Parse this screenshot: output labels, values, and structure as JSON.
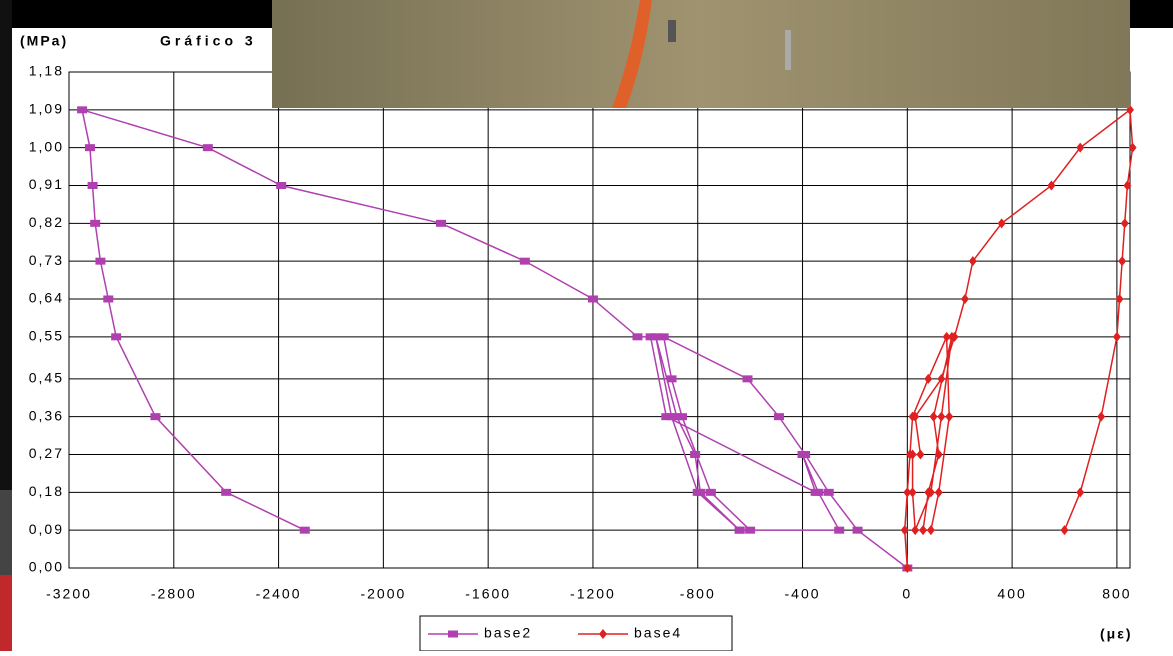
{
  "chart_data": {
    "type": "line",
    "title": "Gráfico 3",
    "y_label": "(MPa)",
    "x_label": "(με)",
    "xlim": [
      -3200,
      850
    ],
    "xticks": [
      -3200,
      -2800,
      -2400,
      -2000,
      -1600,
      -1200,
      -800,
      -400,
      0,
      400,
      800
    ],
    "ylim": [
      0,
      1.18
    ],
    "yticks": [
      {
        "value": 0,
        "label": "0,00"
      },
      {
        "value": 0.09,
        "label": "0,09"
      },
      {
        "value": 0.18,
        "label": "0,18"
      },
      {
        "value": 0.27,
        "label": "0,27"
      },
      {
        "value": 0.36,
        "label": "0,36"
      },
      {
        "value": 0.45,
        "label": "0,45"
      },
      {
        "value": 0.55,
        "label": "0,55"
      },
      {
        "value": 0.64,
        "label": "0,64"
      },
      {
        "value": 0.73,
        "label": "0,73"
      },
      {
        "value": 0.82,
        "label": "0,82"
      },
      {
        "value": 0.91,
        "label": "0,91"
      },
      {
        "value": 1.0,
        "label": "1,00"
      },
      {
        "value": 1.09,
        "label": "1,09"
      },
      {
        "value": 1.18,
        "label": "1,18"
      }
    ],
    "grid": true,
    "legend": "bottom",
    "series": [
      {
        "name": "base2",
        "color": "#b040b0",
        "marker": "square",
        "x": [
          0,
          -190,
          -300,
          -390,
          -490,
          -610,
          -930,
          -900,
          -860,
          -750,
          -600,
          -640,
          -790,
          -810,
          -880,
          -960,
          -900,
          -800,
          -640,
          -260,
          -340,
          -400,
          -350,
          -920,
          -980,
          -1030,
          -1200,
          -1460,
          -1780,
          -2390,
          -2670,
          -3150,
          -3120,
          -3110,
          -3100,
          -3080,
          -3050,
          -3020,
          -2870,
          -2600,
          -2300
        ],
        "values": [
          0,
          0.09,
          0.18,
          0.27,
          0.36,
          0.45,
          0.55,
          0.45,
          0.36,
          0.18,
          0.09,
          0.09,
          0.18,
          0.27,
          0.36,
          0.55,
          0.36,
          0.18,
          0.09,
          0.09,
          0.18,
          0.27,
          0.18,
          0.36,
          0.55,
          0.55,
          0.64,
          0.73,
          0.82,
          0.91,
          1.0,
          1.09,
          1.0,
          0.91,
          0.82,
          0.73,
          0.64,
          0.55,
          0.36,
          0.18,
          0.09
        ]
      },
      {
        "name": "base4",
        "color": "#e02020",
        "marker": "diamond",
        "x": [
          0,
          -10,
          0,
          10,
          20,
          80,
          150,
          160,
          120,
          90,
          60,
          80,
          120,
          100,
          170,
          130,
          90,
          30,
          20,
          20,
          50,
          30,
          130,
          180,
          220,
          250,
          360,
          550,
          660,
          850,
          860,
          840,
          830,
          820,
          810,
          800,
          740,
          660,
          600
        ],
        "values": [
          0,
          0.09,
          0.18,
          0.27,
          0.36,
          0.45,
          0.55,
          0.36,
          0.18,
          0.09,
          0.09,
          0.18,
          0.27,
          0.36,
          0.55,
          0.36,
          0.18,
          0.09,
          0.18,
          0.27,
          0.27,
          0.36,
          0.45,
          0.55,
          0.64,
          0.73,
          0.82,
          0.91,
          1.0,
          1.09,
          1.0,
          0.91,
          0.82,
          0.73,
          0.64,
          0.55,
          0.36,
          0.18,
          0.09
        ]
      }
    ]
  }
}
